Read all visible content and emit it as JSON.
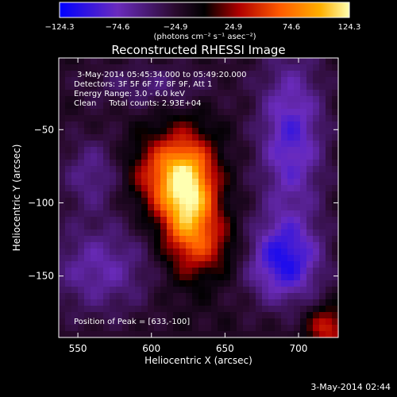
{
  "chart_data": {
    "type": "heatmap",
    "title": "Reconstructed RHESSI Image",
    "xlabel": "Heliocentric X (arcsec)",
    "ylabel": "Heliocentric Y (arcsec)",
    "xlim": [
      537,
      727
    ],
    "ylim": [
      -192,
      -1
    ],
    "x_ticks": [
      550,
      600,
      650,
      700
    ],
    "y_ticks": [
      -50,
      -100,
      -150
    ],
    "x_tick_labels": [
      "550",
      "600",
      "650",
      "700"
    ],
    "y_tick_labels": [
      "−50",
      "−100",
      "−150"
    ],
    "colorbar": {
      "range": [
        -124.3,
        124.3
      ],
      "tick_labels": [
        "−124.3",
        "−74.6",
        "−24.9",
        "24.9",
        "74.6",
        "124.3"
      ],
      "units_label": "(photons cm⁻² s⁻¹ asec⁻²)",
      "colors": [
        "#0000ff",
        "#6a2bbd",
        "#2a0a2e",
        "#000000",
        "#b00000",
        "#ff5a00",
        "#ffb000",
        "#ffffb0"
      ]
    },
    "annotations": [
      "3-May-2014 05:45:34.000 to 05:49:20.000",
      "Detectors: 3F 5F 6F 7F 8F 9F, Att 1",
      "Energy Range: 3.0 - 6.0 keV",
      "Clean     Total counts: 2.93E+04"
    ],
    "peak_label": "Position of Peak = [633,-100]",
    "peak": {
      "x": 633,
      "y": -100,
      "value": 124.3
    },
    "sources": [
      {
        "x": 625,
        "y": -100,
        "sx": 13,
        "sy": 28,
        "value": 124
      },
      {
        "x": 610,
        "y": -80,
        "sx": 18,
        "sy": 18,
        "value": 65
      },
      {
        "x": 645,
        "y": -130,
        "sx": 14,
        "sy": 14,
        "value": 30
      },
      {
        "x": 560,
        "y": -80,
        "sx": 15,
        "sy": 18,
        "value": -40
      },
      {
        "x": 565,
        "y": -145,
        "sx": 25,
        "sy": 22,
        "value": -50
      },
      {
        "x": 695,
        "y": -55,
        "sx": 16,
        "sy": 40,
        "value": -70
      },
      {
        "x": 690,
        "y": -140,
        "sx": 18,
        "sy": 20,
        "value": -85
      },
      {
        "x": 600,
        "y": -20,
        "sx": 30,
        "sy": 10,
        "value": -30
      },
      {
        "x": 720,
        "y": -185,
        "sx": 10,
        "sy": 10,
        "value": 60
      }
    ]
  },
  "footer": {
    "date_stamp": "3-May-2014 02:44"
  }
}
